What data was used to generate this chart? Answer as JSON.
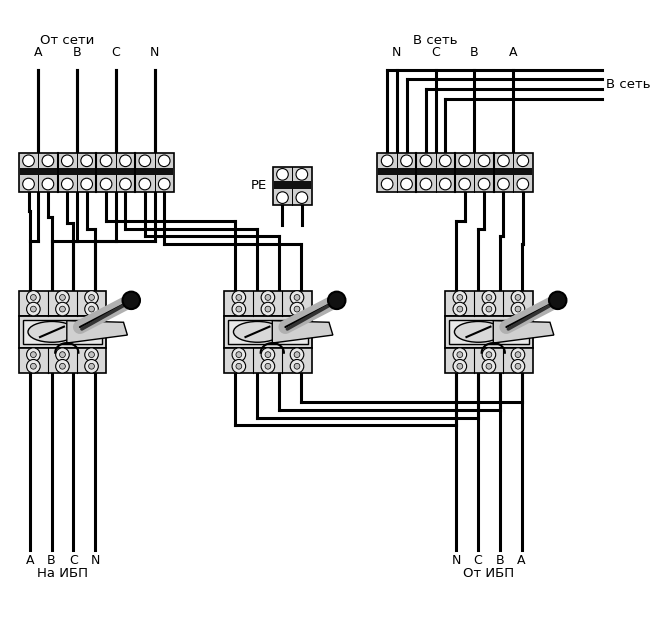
{
  "bg_color": "#ffffff",
  "lc": "#000000",
  "gray_light": "#d8d8d8",
  "gray_mid": "#c0c0c0",
  "gray_dark": "#888888",
  "text_top_left": "От сети",
  "text_bottom_left": "На ИБП",
  "text_top_right": "В сеть",
  "text_right_label": "В сеть",
  "text_bottom_right": "От ИБП",
  "text_pe": "PE",
  "labels_left_top": [
    "A",
    "B",
    "C",
    "N"
  ],
  "labels_left_bottom": [
    "A",
    "B",
    "C",
    "N"
  ],
  "labels_right_top": [
    "N",
    "C",
    "B",
    "A"
  ],
  "labels_right_bottom": [
    "N",
    "C",
    "B",
    "A"
  ],
  "figsize": [
    6.57,
    6.23
  ],
  "dpi": 100
}
